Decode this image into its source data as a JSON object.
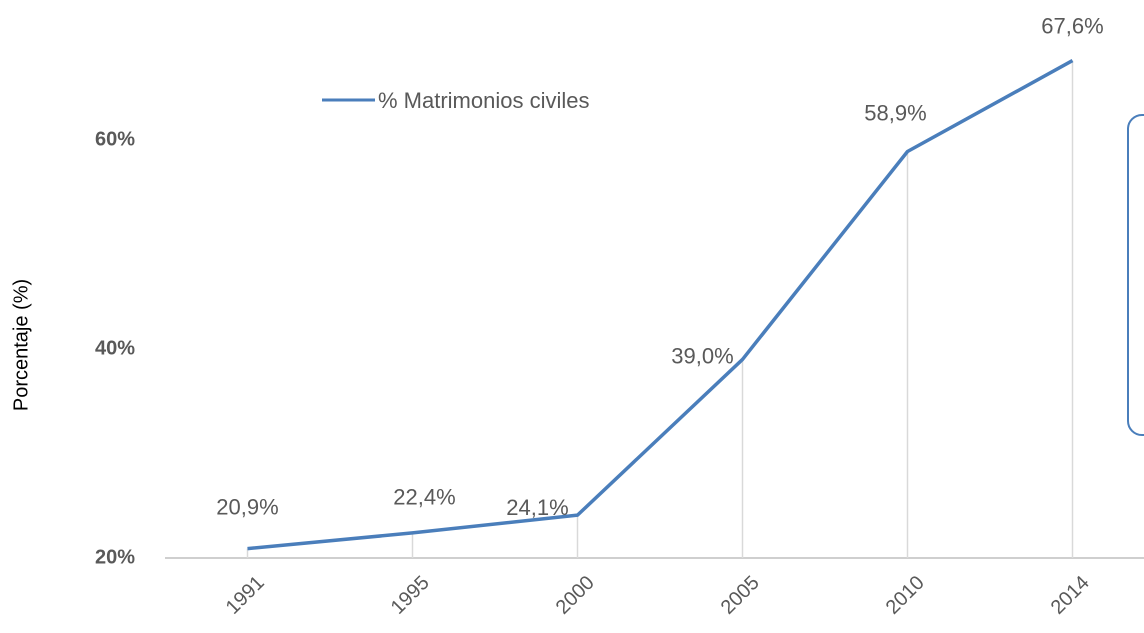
{
  "chart_data": {
    "type": "line",
    "y_label": "Porcentaje (%)",
    "categories": [
      "1991",
      "1995",
      "2000",
      "2005",
      "2010",
      "2014"
    ],
    "series": [
      {
        "name": "% Matrimonios civiles",
        "color": "#4a7ebb",
        "values": [
          20.9,
          22.4,
          24.1,
          39.0,
          58.9,
          67.6
        ],
        "value_labels": [
          "20,9%",
          "22,4%",
          "24,1%",
          "39,0%",
          "58,9%",
          "67,6%"
        ]
      }
    ],
    "ylim": [
      20,
      70
    ],
    "yticks": [
      {
        "value": 20,
        "label": "20%"
      },
      {
        "value": 40,
        "label": "40%"
      },
      {
        "value": 60,
        "label": "60%"
      }
    ],
    "legend": "top"
  }
}
